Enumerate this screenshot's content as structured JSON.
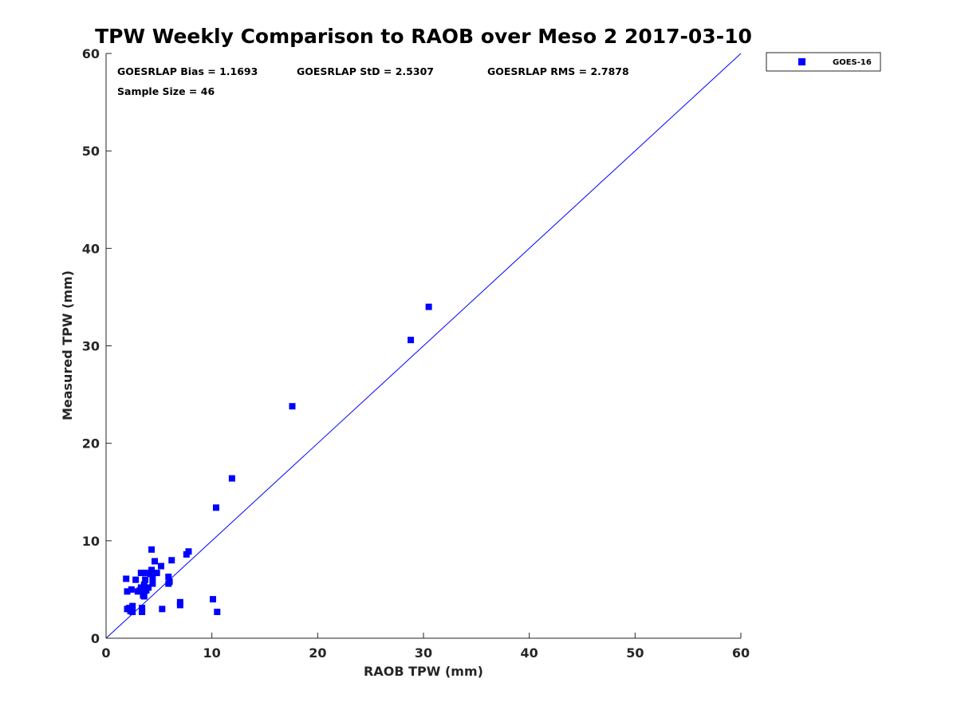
{
  "chart_data": {
    "type": "scatter",
    "title": "TPW Weekly Comparison to RAOB over Meso 2 2017-03-10",
    "xlabel": "RAOB TPW (mm)",
    "ylabel": "Measured TPW (mm)",
    "xlim": [
      0,
      60
    ],
    "ylim": [
      0,
      60
    ],
    "xticks": [
      "0",
      "10",
      "20",
      "30",
      "40",
      "50",
      "60"
    ],
    "yticks": [
      "0",
      "10",
      "20",
      "30",
      "40",
      "50",
      "60"
    ],
    "grid": false,
    "legend": {
      "position": "outside-top-right",
      "entries": [
        "GOES-16"
      ]
    },
    "stats": {
      "bias": "GOESRLAP Bias = 1.1693",
      "std": "GOESRLAP StD = 2.5307",
      "rms": "GOESRLAP RMS = 2.7878",
      "sample": "Sample Size = 46"
    },
    "reference_line": {
      "type": "one-to-one",
      "from": [
        0,
        0
      ],
      "to": [
        60,
        60
      ]
    },
    "series": [
      {
        "name": "GOES-16",
        "color": "#0000ff",
        "marker": "square",
        "points": [
          [
            1.9,
            6.1
          ],
          [
            2.0,
            4.8
          ],
          [
            2.0,
            3.0
          ],
          [
            2.3,
            2.8
          ],
          [
            2.4,
            5.0
          ],
          [
            2.5,
            2.7
          ],
          [
            2.5,
            3.3
          ],
          [
            2.8,
            6.0
          ],
          [
            3.0,
            4.8
          ],
          [
            3.3,
            6.7
          ],
          [
            3.3,
            5.2
          ],
          [
            3.4,
            2.7
          ],
          [
            3.4,
            3.1
          ],
          [
            3.5,
            4.4
          ],
          [
            3.6,
            5.5
          ],
          [
            3.7,
            6.0
          ],
          [
            3.8,
            4.9
          ],
          [
            3.8,
            6.7
          ],
          [
            4.0,
            5.2
          ],
          [
            4.3,
            9.1
          ],
          [
            4.3,
            7.0
          ],
          [
            4.4,
            6.2
          ],
          [
            4.4,
            5.6
          ],
          [
            4.6,
            7.9
          ],
          [
            4.8,
            6.7
          ],
          [
            5.2,
            7.4
          ],
          [
            5.3,
            3.0
          ],
          [
            5.9,
            5.6
          ],
          [
            5.9,
            6.3
          ],
          [
            6.0,
            5.8
          ],
          [
            6.2,
            8.0
          ],
          [
            7.0,
            3.4
          ],
          [
            7.0,
            3.7
          ],
          [
            7.6,
            8.6
          ],
          [
            7.8,
            8.9
          ],
          [
            10.1,
            4.0
          ],
          [
            10.4,
            13.4
          ],
          [
            10.5,
            2.7
          ],
          [
            11.9,
            16.4
          ],
          [
            17.6,
            23.8
          ],
          [
            28.8,
            30.6
          ],
          [
            30.5,
            34.0
          ],
          [
            3.2,
            4.9
          ],
          [
            4.2,
            6.6
          ],
          [
            3.6,
            4.3
          ],
          [
            2.2,
            3.1
          ]
        ]
      }
    ]
  }
}
